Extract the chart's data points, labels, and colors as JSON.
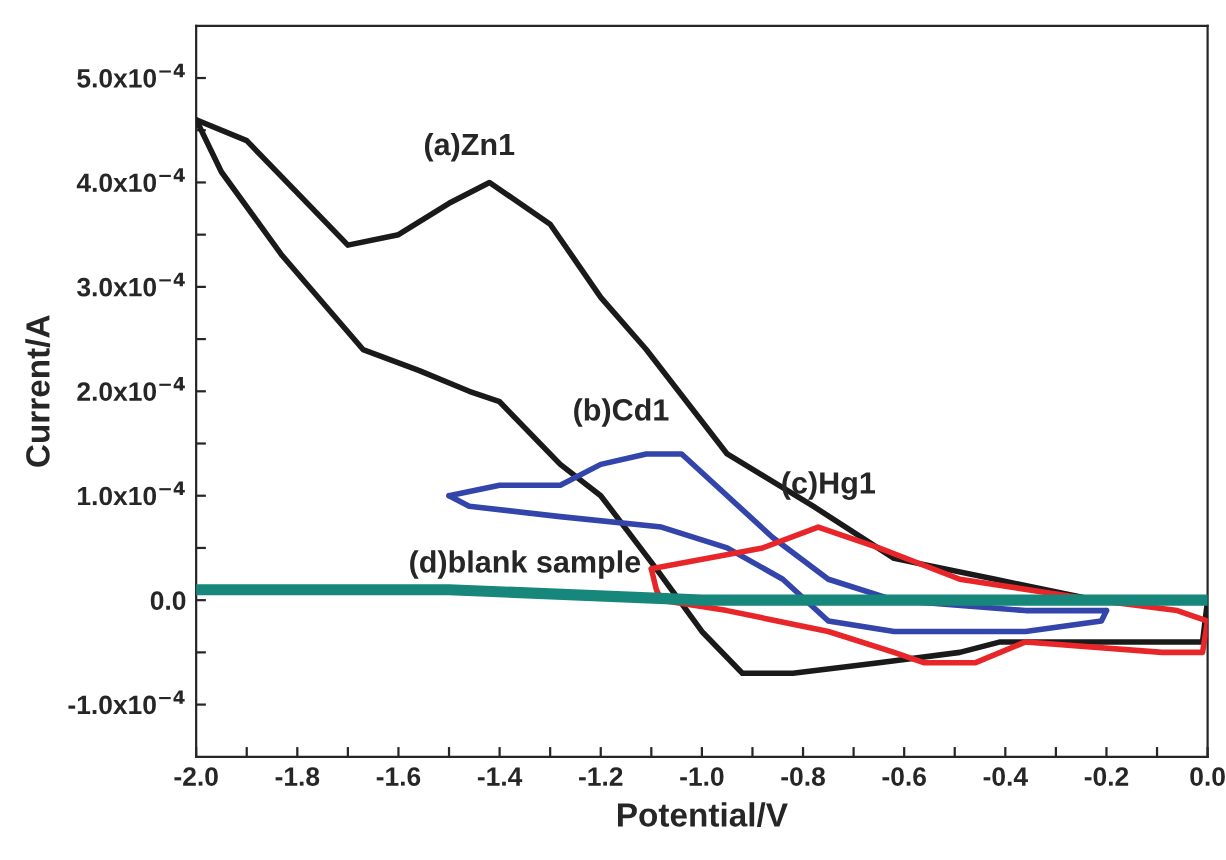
{
  "chart_data": {
    "type": "line",
    "xlabel": "Potential/V",
    "ylabel": "Current/A",
    "xlim": [
      -2.0,
      0.0
    ],
    "ylim": [
      -0.00015,
      0.00055
    ],
    "xticks": [
      {
        "value": -2.0,
        "label": "-2.0"
      },
      {
        "value": -1.9,
        "label": null
      },
      -1.8,
      {
        "value": -1.7,
        "label": null
      },
      -1.6,
      {
        "value": -1.5,
        "label": null
      },
      -1.4,
      {
        "value": -1.3,
        "label": null
      },
      -1.2,
      {
        "value": -1.1,
        "label": null
      },
      {
        "value": -1.0,
        "label": "-1.0"
      },
      {
        "value": -0.9,
        "label": null
      },
      -0.8,
      {
        "value": -0.7,
        "label": null
      },
      -0.6,
      {
        "value": -0.5,
        "label": null
      },
      -0.4,
      {
        "value": -0.3,
        "label": null
      },
      -0.2,
      {
        "value": -0.1,
        "label": null
      },
      {
        "value": 0.0,
        "label": "0.0"
      }
    ],
    "yticks": [
      {
        "value": -0.0001,
        "label": "-1.0x10$^{−4}$"
      },
      {
        "value": -5e-05,
        "label": null
      },
      {
        "value": 0,
        "label": "0.0"
      },
      {
        "value": 5e-05,
        "label": null
      },
      {
        "value": 0.0001,
        "label": "1.0x10$^{−4}$"
      },
      {
        "value": 0.00015,
        "label": null
      },
      {
        "value": 0.0002,
        "label": "2.0x10$^{−4}$"
      },
      {
        "value": 0.00025,
        "label": null
      },
      {
        "value": 0.0003,
        "label": "3.0x10$^{−4}$"
      },
      {
        "value": 0.00035,
        "label": null
      },
      {
        "value": 0.0004,
        "label": "4.0x10$^{−4}$"
      },
      {
        "value": 0.00045,
        "label": null
      },
      {
        "value": 0.0005,
        "label": "5.0x10$^{−4}$"
      }
    ],
    "grid": false,
    "legend": false,
    "marker": "none",
    "line_style": "solid",
    "series": [
      {
        "color": "#1a1a1a",
        "x": [
          -2.0,
          -1.9,
          -1.8,
          -1.7,
          -1.6,
          -1.5,
          -1.42,
          -1.3,
          -1.2,
          -1.11,
          -0.95,
          -0.78,
          -0.62,
          -0.42,
          -0.22,
          0.0
        ],
        "values": [
          0.00046,
          0.00044,
          0.00039,
          0.00034,
          0.00035,
          0.00038,
          0.0004,
          0.00036,
          0.00029,
          0.00024,
          0.00014,
          9e-05,
          4e-05,
          2e-05,
          0.0,
          0.0
        ]
      },
      {
        "color": "#1a1a1a",
        "x": [
          0.0,
          -0.01,
          -0.2,
          -0.41,
          -0.49,
          -0.65,
          -0.82,
          -0.92,
          -1.0,
          -1.09,
          -1.2,
          -1.28,
          -1.4,
          -1.46,
          -1.56,
          -1.67,
          -1.83,
          -1.95,
          -2.0
        ],
        "values": [
          0.0,
          -4e-05,
          -4e-05,
          -4e-05,
          -5e-05,
          -6e-05,
          -7e-05,
          -7e-05,
          -3e-05,
          3e-05,
          0.0001,
          0.00013,
          0.00019,
          0.0002,
          0.00022,
          0.00024,
          0.00033,
          0.00041,
          0.00046
        ]
      },
      {
        "color": "#3344aa",
        "x": [
          -1.5,
          -1.4,
          -1.28,
          -1.2,
          -1.11,
          -1.04,
          -0.95,
          -0.86,
          -0.75,
          -0.62,
          -0.36,
          -0.2
        ],
        "values": [
          0.0001,
          0.00011,
          0.00011,
          0.00013,
          0.00014,
          0.00014,
          0.0001,
          6e-05,
          2e-05,
          0.0,
          -1e-05,
          -1e-05
        ]
      },
      {
        "color": "#3344aa",
        "x": [
          -0.2,
          -0.21,
          -0.36,
          -0.62,
          -0.75,
          -0.84,
          -0.95,
          -1.08,
          -1.28,
          -1.46,
          -1.5
        ],
        "values": [
          -1e-05,
          -2e-05,
          -3e-05,
          -3e-05,
          -2e-05,
          2e-05,
          5e-05,
          7e-05,
          8e-05,
          9e-05,
          0.0001
        ]
      },
      {
        "color": "#e8262a",
        "x": [
          -1.1,
          -0.88,
          -0.77,
          -0.65,
          -0.49,
          -0.22,
          -0.06,
          0.0
        ],
        "values": [
          3e-05,
          5e-05,
          7e-05,
          5e-05,
          2e-05,
          0.0,
          -1e-05,
          -2e-05
        ]
      },
      {
        "color": "#e8262a",
        "x": [
          0.0,
          -0.01,
          -0.09,
          -0.36,
          -0.46,
          -0.56,
          -0.62,
          -0.75,
          -0.95,
          -1.08,
          -1.09,
          -1.1
        ],
        "values": [
          -2e-05,
          -5e-05,
          -5e-05,
          -4e-05,
          -6e-05,
          -6e-05,
          -5e-05,
          -3e-05,
          -1e-05,
          0.0,
          1e-05,
          3e-05
        ]
      },
      {
        "color": "#16877a",
        "x": [
          -2.0,
          -1.5,
          -1.0,
          -0.5,
          0.0
        ],
        "values": [
          1e-05,
          1e-05,
          0.0,
          0.0,
          0.0
        ]
      }
    ],
    "annotations": [
      "(a)Zn1",
      "(b)Cd1",
      "(c)Hg1",
      "(d)blank sample"
    ]
  }
}
